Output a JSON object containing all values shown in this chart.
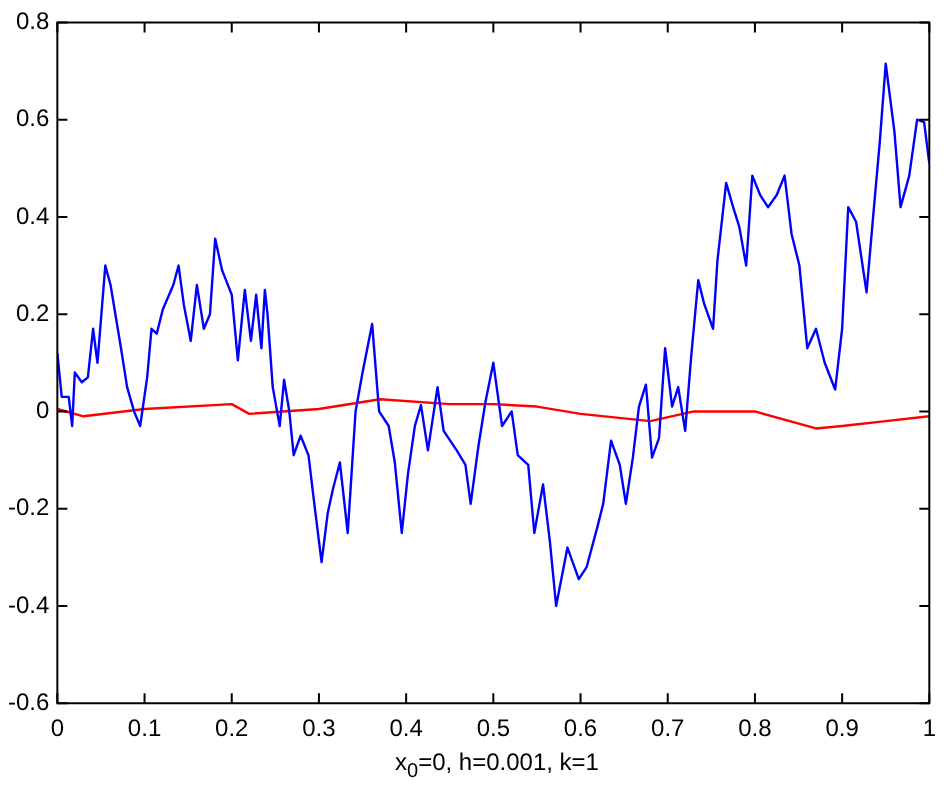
{
  "chart_data": {
    "type": "line",
    "xlabel": "x$_{0}$=0, h=0.001, k=1",
    "xlim": [
      0,
      1
    ],
    "xticks": [
      0,
      0.1,
      0.2,
      0.3,
      0.4,
      0.5,
      0.6,
      0.7,
      0.8,
      0.9,
      1
    ],
    "ylim": [
      -0.6,
      0.8
    ],
    "yticks": [
      -0.6,
      -0.4,
      -0.2,
      0,
      0.2,
      0.4,
      0.6,
      0.8
    ],
    "grid": false,
    "legend": false,
    "marker": "none",
    "line_style": "solid",
    "series": [
      {
        "color": "#0000ff",
        "x": [
          0,
          0.005,
          0.013,
          0.017,
          0.02,
          0.028,
          0.035,
          0.041,
          0.046,
          0.055,
          0.061,
          0.073,
          0.08,
          0.088,
          0.095,
          0.103,
          0.108,
          0.114,
          0.121,
          0.133,
          0.139,
          0.145,
          0.153,
          0.16,
          0.168,
          0.175,
          0.181,
          0.189,
          0.2,
          0.207,
          0.215,
          0.222,
          0.228,
          0.234,
          0.238,
          0.241,
          0.247,
          0.255,
          0.26,
          0.266,
          0.271,
          0.279,
          0.288,
          0.294,
          0.303,
          0.31,
          0.316,
          0.324,
          0.333,
          0.342,
          0.35,
          0.361,
          0.369,
          0.38,
          0.387,
          0.395,
          0.402,
          0.41,
          0.417,
          0.425,
          0.436,
          0.443,
          0.458,
          0.468,
          0.474,
          0.483,
          0.491,
          0.5,
          0.51,
          0.521,
          0.528,
          0.54,
          0.547,
          0.557,
          0.565,
          0.572,
          0.585,
          0.598,
          0.607,
          0.619,
          0.626,
          0.635,
          0.645,
          0.652,
          0.66,
          0.667,
          0.675,
          0.682,
          0.69,
          0.697,
          0.705,
          0.712,
          0.72,
          0.727,
          0.735,
          0.742,
          0.752,
          0.757,
          0.767,
          0.775,
          0.782,
          0.79,
          0.797,
          0.806,
          0.815,
          0.825,
          0.834,
          0.842,
          0.851,
          0.86,
          0.87,
          0.88,
          0.892,
          0.9,
          0.907,
          0.916,
          0.928,
          0.937,
          0.943,
          0.95,
          0.96,
          0.967,
          0.977,
          0.986,
          0.994,
          1.0
        ],
        "values": [
          0.12,
          0.03,
          0.03,
          -0.03,
          0.08,
          0.06,
          0.07,
          0.17,
          0.1,
          0.3,
          0.26,
          0.13,
          0.05,
          0.0,
          -0.03,
          0.07,
          0.17,
          0.16,
          0.21,
          0.26,
          0.3,
          0.22,
          0.145,
          0.26,
          0.17,
          0.2,
          0.355,
          0.29,
          0.24,
          0.105,
          0.25,
          0.145,
          0.24,
          0.13,
          0.25,
          0.2,
          0.05,
          -0.03,
          0.065,
          0,
          -0.09,
          -0.05,
          -0.09,
          -0.18,
          -0.31,
          -0.21,
          -0.16,
          -0.105,
          -0.25,
          0.0,
          0.08,
          0.18,
          0.0,
          -0.03,
          -0.105,
          -0.25,
          -0.13,
          -0.03,
          0.013,
          -0.08,
          0.05,
          -0.04,
          -0.08,
          -0.11,
          -0.19,
          -0.07,
          0.02,
          0.1,
          -0.03,
          0,
          -0.09,
          -0.11,
          -0.25,
          -0.15,
          -0.27,
          -0.4,
          -0.28,
          -0.345,
          -0.32,
          -0.24,
          -0.19,
          -0.06,
          -0.11,
          -0.19,
          -0.095,
          0.01,
          0.055,
          -0.095,
          -0.055,
          0.13,
          0.01,
          0.05,
          -0.04,
          0.115,
          0.27,
          0.22,
          0.17,
          0.31,
          0.47,
          0.42,
          0.38,
          0.3,
          0.485,
          0.445,
          0.42,
          0.445,
          0.485,
          0.365,
          0.3,
          0.13,
          0.17,
          0.1,
          0.045,
          0.17,
          0.42,
          0.39,
          0.245,
          0.43,
          0.55,
          0.715,
          0.575,
          0.42,
          0.485,
          0.6,
          0.595,
          0.51
        ]
      },
      {
        "color": "#ff0000",
        "x": [
          0,
          0.03,
          0.1,
          0.2,
          0.22,
          0.3,
          0.37,
          0.45,
          0.5,
          0.55,
          0.6,
          0.68,
          0.73,
          0.8,
          0.87,
          0.9,
          0.95,
          1.0
        ],
        "values": [
          0.005,
          -0.01,
          0.005,
          0.015,
          -0.005,
          0.005,
          0.025,
          0.015,
          0.015,
          0.01,
          -0.005,
          -0.02,
          0.0,
          0.0,
          -0.035,
          -0.03,
          -0.02,
          -0.01
        ]
      }
    ]
  }
}
